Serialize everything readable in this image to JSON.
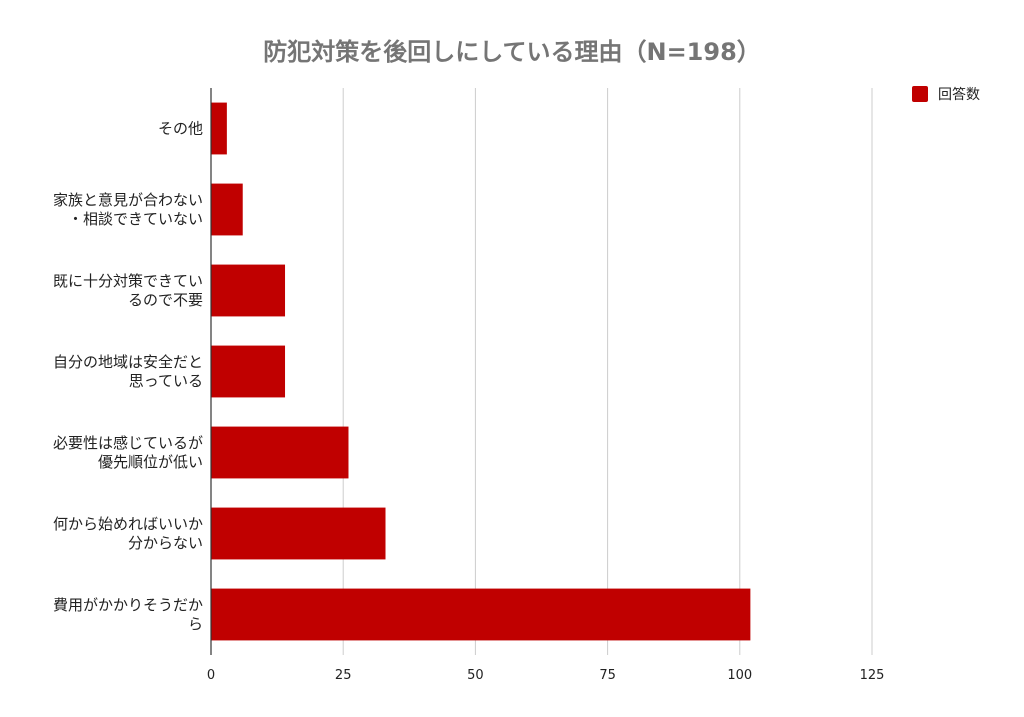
{
  "chart_data": {
    "type": "bar",
    "orientation": "horizontal",
    "title": "防犯対策を後回しにしている理由（N=198）",
    "categories": [
      [
        "その他"
      ],
      [
        "家族と意見が合わない",
        "・相談できていない"
      ],
      [
        "既に十分対策できてい",
        "るので不要"
      ],
      [
        "自分の地域は安全だと",
        "思っている"
      ],
      [
        "必要性は感じているが",
        "優先順位が低い"
      ],
      [
        "何から始めればいいか",
        "分からない"
      ],
      [
        "費用がかかりそうだか",
        "ら"
      ]
    ],
    "series": [
      {
        "name": "回答数",
        "color": "#c00000",
        "values": [
          3,
          6,
          14,
          14,
          26,
          33,
          102
        ]
      }
    ],
    "xlim": [
      0,
      125
    ],
    "xticks": [
      0,
      25,
      50,
      75,
      100,
      125
    ],
    "grid": true,
    "legend": "top-right"
  }
}
